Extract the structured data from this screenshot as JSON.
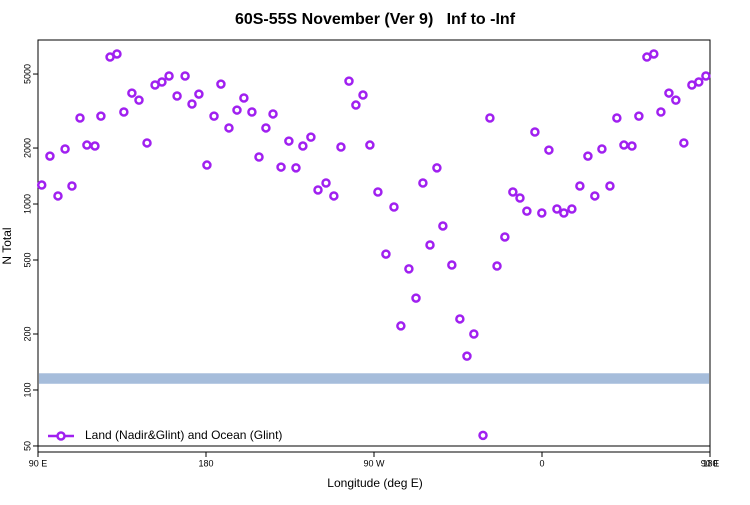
{
  "chart_data": {
    "type": "scatter",
    "title": "60S-55S November (Ver 9)   Inf to -Inf",
    "xlabel": "Longitude (deg E)",
    "ylabel": "N Total",
    "xlim": [
      90,
      450
    ],
    "xticks": [
      {
        "value": 90,
        "label": "90 E"
      },
      {
        "value": 180,
        "label": "180"
      },
      {
        "value": 270,
        "label": "90 W"
      },
      {
        "value": 360,
        "label": "0"
      },
      {
        "value": 450,
        "label": "90 E"
      },
      {
        "value": 540,
        "label": "180"
      }
    ],
    "ylim": [
      46.4,
      7620
    ],
    "ylog": true,
    "yticks": [
      50,
      100,
      200,
      500,
      1000,
      2000,
      5000
    ],
    "reference_band": [
      108,
      123
    ],
    "band_color": "#a6bddb",
    "hline": 50,
    "legend": "bottom-left",
    "series": [
      {
        "name": "Land (Nadir&Glint) and Ocean (Glint)",
        "color": "#a020f0",
        "x": [
          92,
          96.4,
          100.7,
          104.5,
          108.2,
          112.5,
          116.2,
          120.5,
          123.7,
          128.6,
          132.3,
          136,
          140.3,
          144.1,
          148.4,
          152.7,
          156.4,
          160.2,
          164.5,
          168.8,
          172.5,
          176.2,
          180.5,
          184.3,
          188,
          192.3,
          196.6,
          200.3,
          204.6,
          208.4,
          212.1,
          215.9,
          220.2,
          224.4,
          228.2,
          231.9,
          236.2,
          240,
          244.3,
          248.5,
          252.3,
          256.6,
          260.3,
          264.1,
          267.8,
          272.1,
          276.4,
          280.7,
          284.4,
          288.7,
          292.5,
          296.2,
          300,
          303.7,
          306.9,
          311.7,
          316,
          319.8,
          323.5,
          328.4,
          332.1,
          335.9,
          340.1,
          344.4,
          348.2,
          351.9,
          356.2,
          359.9,
          363.7,
          368,
          371.7,
          376,
          380.3,
          384.6,
          388.3,
          392.1,
          396.4,
          400.1,
          403.9,
          408.2,
          411.9,
          416.2,
          419.9,
          423.7,
          428,
          431.7,
          436,
          440.3,
          444,
          447.8
        ],
        "values": [
          1265,
          1810,
          1105,
          1976,
          1250,
          2900,
          2075,
          2050,
          2970,
          6170,
          6410,
          3125,
          3950,
          3620,
          2130,
          4365,
          4530,
          4880,
          3810,
          4880,
          3450,
          3900,
          1620,
          2970,
          4415,
          2565,
          3200,
          3715,
          3125,
          1790,
          2565,
          3050,
          1580,
          2180,
          1565,
          2050,
          2290,
          1190,
          1297,
          1105,
          2025,
          4580,
          3405,
          3855,
          2075,
          1160,
          538,
          964,
          221,
          448,
          312,
          1297,
          602,
          1565,
          762,
          470,
          241,
          152,
          200,
          57,
          2900,
          464,
          665,
          1160,
          1077,
          916,
          2440,
          895,
          1950,
          940,
          895,
          940,
          1250,
          1810,
          1105,
          1976,
          1250,
          2900,
          2075,
          2050,
          2970,
          6170,
          6410,
          3125,
          3950,
          3620,
          2130,
          4365,
          4530,
          4880
        ]
      }
    ]
  }
}
